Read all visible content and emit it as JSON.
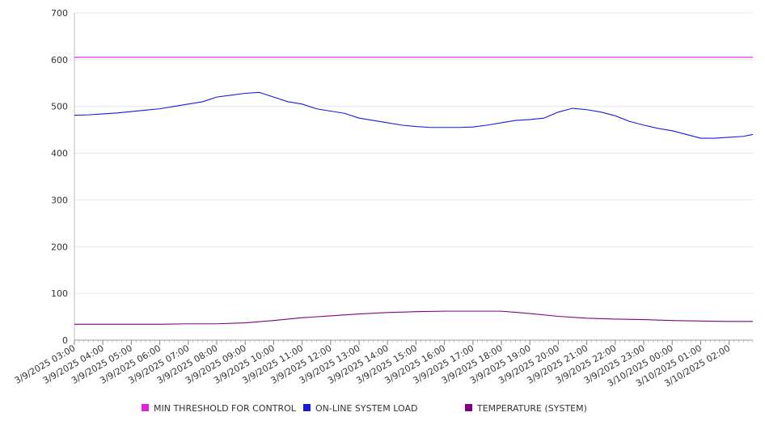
{
  "chart_data": {
    "type": "line",
    "ylim": [
      0,
      700
    ],
    "y_ticks": [
      "0",
      "100",
      "200",
      "300",
      "400",
      "500",
      "600",
      "700"
    ],
    "y_tick_values": [
      0,
      100,
      200,
      300,
      400,
      500,
      600,
      700
    ],
    "x_range": [
      "3/9/2025 03:00",
      "3/10/2025 02:50"
    ],
    "x_tick_labels": [
      "3/9/2025 03:00",
      "3/9/2025 04:00",
      "3/9/2025 05:00",
      "3/9/2025 06:00",
      "3/9/2025 07:00",
      "3/9/2025 08:00",
      "3/9/2025 09:00",
      "3/9/2025 10:00",
      "3/9/2025 11:00",
      "3/9/2025 12:00",
      "3/9/2025 13:00",
      "3/9/2025 14:00",
      "3/9/2025 15:00",
      "3/9/2025 16:00",
      "3/9/2025 17:00",
      "3/9/2025 18:00",
      "3/9/2025 19:00",
      "3/9/2025 20:00",
      "3/9/2025 21:00",
      "3/9/2025 22:00",
      "3/9/2025 23:00",
      "3/10/2025 00:00",
      "3/10/2025 01:00",
      "3/10/2025 02:00"
    ],
    "grid": true,
    "legend": "bottom",
    "series": [
      {
        "name": "MIN THRESHOLD FOR CONTROL",
        "color": "#dd22dd",
        "x": [
          "3/9/2025 03:00",
          "3/10/2025 02:50"
        ],
        "values": [
          605,
          605
        ]
      },
      {
        "name": "ON-LINE SYSTEM LOAD",
        "color": "#1a1adb",
        "x": [
          "3/9/2025 03:00",
          "3/9/2025 03:30",
          "3/9/2025 04:00",
          "3/9/2025 04:30",
          "3/9/2025 05:00",
          "3/9/2025 05:30",
          "3/9/2025 06:00",
          "3/9/2025 06:30",
          "3/9/2025 07:00",
          "3/9/2025 07:30",
          "3/9/2025 08:00",
          "3/9/2025 08:30",
          "3/9/2025 09:00",
          "3/9/2025 09:30",
          "3/9/2025 10:00",
          "3/9/2025 10:30",
          "3/9/2025 11:00",
          "3/9/2025 11:30",
          "3/9/2025 12:00",
          "3/9/2025 12:30",
          "3/9/2025 13:00",
          "3/9/2025 13:30",
          "3/9/2025 14:00",
          "3/9/2025 14:30",
          "3/9/2025 15:00",
          "3/9/2025 15:30",
          "3/9/2025 16:00",
          "3/9/2025 16:30",
          "3/9/2025 17:00",
          "3/9/2025 17:30",
          "3/9/2025 18:00",
          "3/9/2025 18:30",
          "3/9/2025 19:00",
          "3/9/2025 19:30",
          "3/9/2025 20:00",
          "3/9/2025 20:30",
          "3/9/2025 21:00",
          "3/9/2025 21:30",
          "3/9/2025 22:00",
          "3/9/2025 22:30",
          "3/9/2025 23:00",
          "3/9/2025 23:30",
          "3/10/2025 00:00",
          "3/10/2025 00:30",
          "3/10/2025 01:00",
          "3/10/2025 01:30",
          "3/10/2025 02:00",
          "3/10/2025 02:30",
          "3/10/2025 02:50"
        ],
        "values": [
          481,
          482,
          484,
          486,
          489,
          492,
          495,
          500,
          505,
          510,
          520,
          524,
          528,
          530,
          520,
          510,
          505,
          495,
          490,
          485,
          475,
          470,
          465,
          460,
          457,
          455,
          455,
          455,
          456,
          460,
          465,
          470,
          472,
          475,
          488,
          496,
          493,
          488,
          480,
          468,
          460,
          453,
          448,
          440,
          432,
          432,
          434,
          436,
          440
        ]
      },
      {
        "name": "TEMPERATURE (SYSTEM)",
        "color": "#800080",
        "x": [
          "3/9/2025 03:00",
          "3/9/2025 04:00",
          "3/9/2025 05:00",
          "3/9/2025 06:00",
          "3/9/2025 07:00",
          "3/9/2025 08:00",
          "3/9/2025 09:00",
          "3/9/2025 10:00",
          "3/9/2025 11:00",
          "3/9/2025 12:00",
          "3/9/2025 13:00",
          "3/9/2025 14:00",
          "3/9/2025 15:00",
          "3/9/2025 16:00",
          "3/9/2025 17:00",
          "3/9/2025 18:00",
          "3/9/2025 19:00",
          "3/9/2025 20:00",
          "3/9/2025 21:00",
          "3/9/2025 22:00",
          "3/9/2025 23:00",
          "3/10/2025 00:00",
          "3/10/2025 01:00",
          "3/10/2025 02:00",
          "3/10/2025 02:50"
        ],
        "values": [
          34,
          34,
          34,
          34,
          35,
          35,
          37,
          42,
          48,
          52,
          56,
          59,
          61,
          62,
          62,
          62,
          57,
          51,
          47,
          45,
          44,
          42,
          41,
          40,
          40
        ]
      }
    ]
  }
}
